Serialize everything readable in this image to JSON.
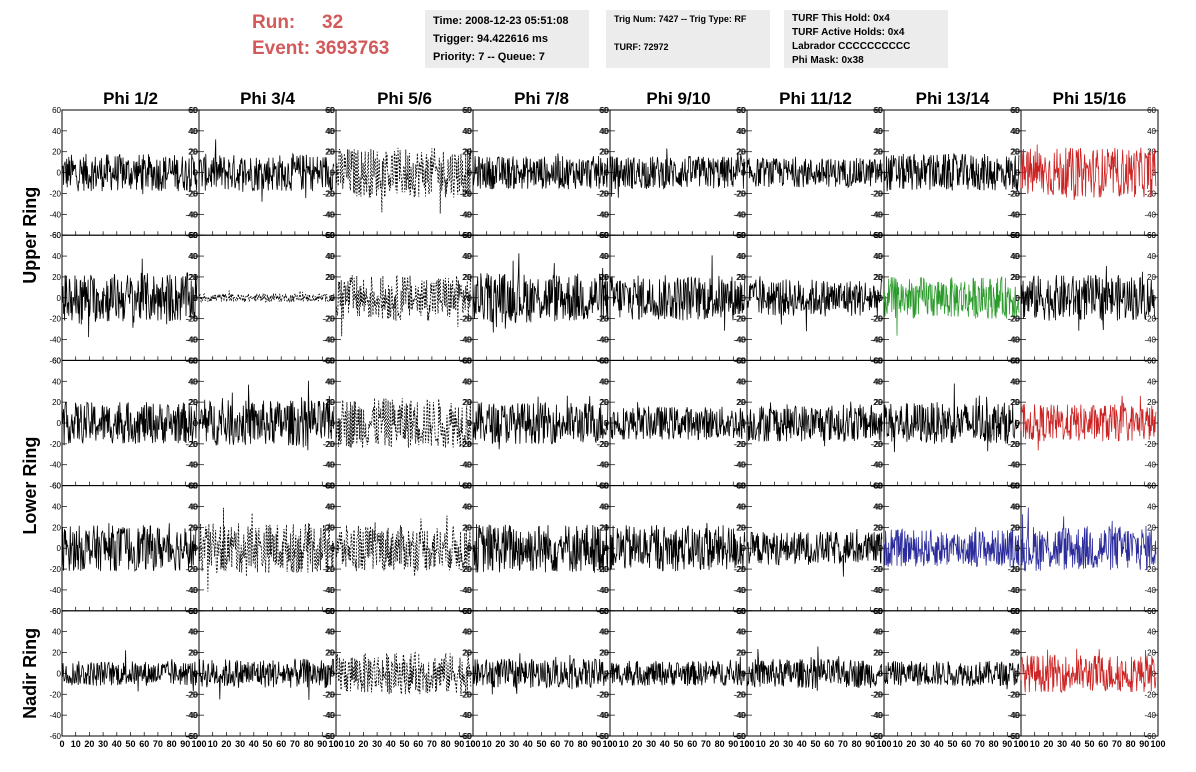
{
  "header": {
    "run_label": "Run:",
    "run_value": "32",
    "event_label": "Event:",
    "event_value": "3693763"
  },
  "info_time": {
    "time": "Time: 2008-12-23 05:51:08",
    "trigger": "Trigger: 94.422616 ms",
    "priority": "Priority: 7 -- Queue: 7"
  },
  "info_trig": {
    "trig": "Trig Num: 7427 -- Trig Type: RF",
    "turf": "TURF: 72972"
  },
  "info_turf": {
    "hold": "TURF This Hold: 0x4",
    "active": "TURF Active Holds: 0x4",
    "labrador": "Labrador CCCCCCCCCC",
    "phimask": "Phi Mask: 0x38"
  },
  "chart_data": {
    "type": "line",
    "columns": [
      "Phi 1/2",
      "Phi 3/4",
      "Phi 5/6",
      "Phi 7/8",
      "Phi 9/10",
      "Phi 11/12",
      "Phi 13/14",
      "Phi 15/16"
    ],
    "row_groups": [
      {
        "label": "Upper Ring",
        "rows": [
          0,
          1
        ]
      },
      {
        "label": "Lower Ring",
        "rows": [
          2,
          3
        ]
      },
      {
        "label": "Nadir Ring",
        "rows": [
          4
        ]
      }
    ],
    "xlim": [
      0,
      100
    ],
    "ylim": [
      -60,
      60
    ],
    "x_ticks": [
      0,
      10,
      20,
      30,
      40,
      50,
      60,
      70,
      80,
      90,
      100
    ],
    "y_ticks": [
      -60,
      -40,
      -20,
      0,
      20,
      40,
      60
    ],
    "colors": {
      "black": "#000000",
      "red": "#cc2222",
      "green": "#2a9a2a",
      "blue": "#2b2b9c"
    },
    "trace_style": [
      [
        "solid",
        "solid",
        "dashed",
        "solid",
        "solid",
        "solid",
        "solid",
        "red"
      ],
      [
        "solid",
        "dashed-flat",
        "dashed",
        "solid",
        "solid",
        "solid",
        "green",
        "solid"
      ],
      [
        "solid",
        "solid",
        "dashed",
        "solid",
        "solid",
        "solid",
        "solid",
        "red"
      ],
      [
        "solid",
        "dashed",
        "dashed",
        "solid",
        "solid",
        "solid",
        "blue",
        "blue"
      ],
      [
        "solid",
        "solid",
        "dashed",
        "solid",
        "solid",
        "solid",
        "solid",
        "red"
      ]
    ],
    "amplitude": [
      [
        18,
        18,
        24,
        16,
        16,
        14,
        18,
        24
      ],
      [
        24,
        4,
        22,
        24,
        22,
        18,
        20,
        22
      ],
      [
        20,
        22,
        24,
        20,
        16,
        18,
        20,
        18
      ],
      [
        22,
        24,
        22,
        24,
        22,
        16,
        18,
        22
      ],
      [
        12,
        14,
        20,
        14,
        12,
        14,
        12,
        18
      ]
    ]
  }
}
